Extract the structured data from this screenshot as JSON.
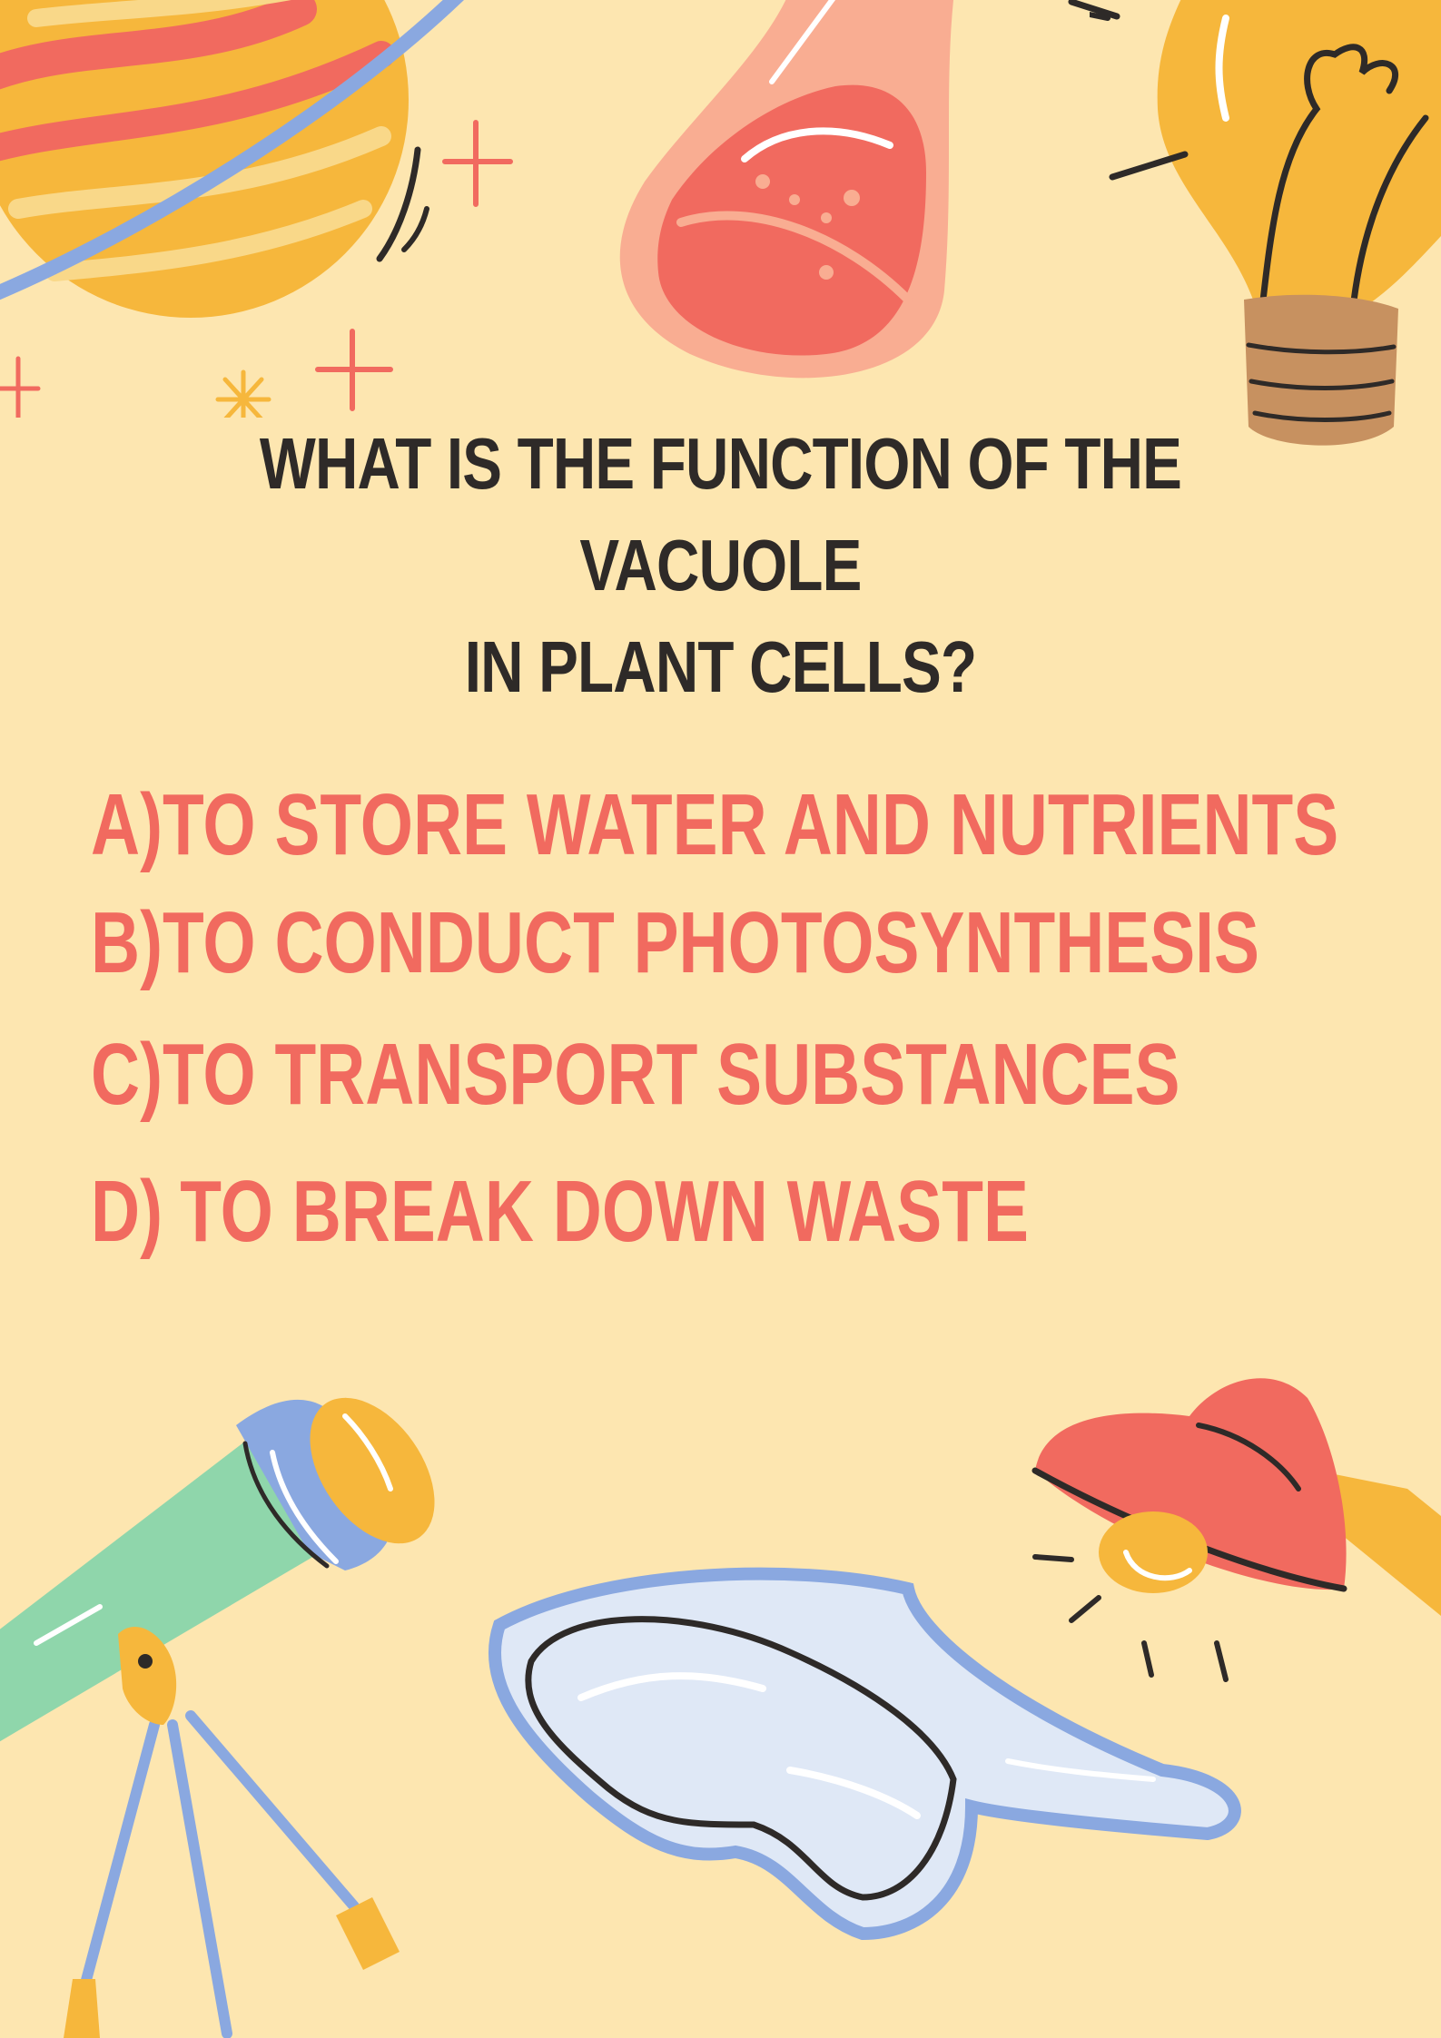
{
  "question": {
    "line1": "WHAT IS THE FUNCTION OF THE VACUOLE",
    "line2": "IN PLANT CELLS?"
  },
  "answers": [
    {
      "letter": "A)",
      "text": "TO STORE WATER AND NUTRIENTS"
    },
    {
      "letter": "B)",
      "text": "TO CONDUCT PHOTOSYNTHESIS"
    },
    {
      "letter": "C)",
      "text": "TO TRANSPORT SUBSTANCES"
    },
    {
      "letter": "D)",
      "text": "TO BREAK DOWN WASTE"
    }
  ],
  "colors": {
    "background": "#fde6b0",
    "question": "#2e2a28",
    "answers": "#f16a5f"
  },
  "illustrations": [
    "planet-icon",
    "flask-icon",
    "light-bulb-icon",
    "telescope-icon",
    "safety-goggles-icon",
    "desk-lamp-icon"
  ]
}
